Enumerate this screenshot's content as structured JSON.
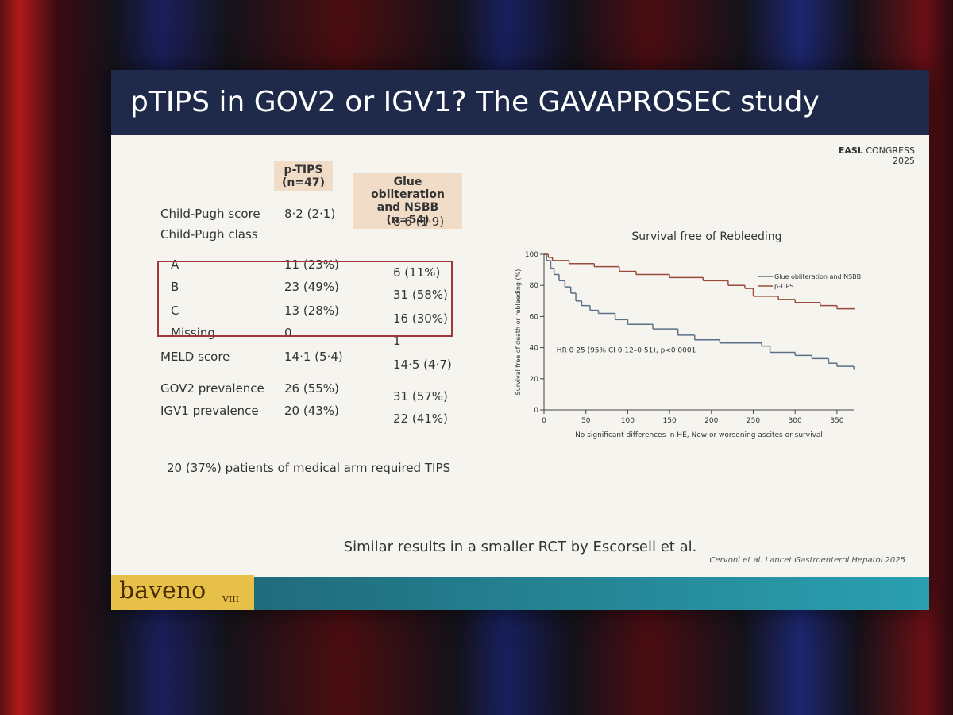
{
  "slide": {
    "title": "pTIPS in GOV2 or IGV1? The GAVAPROSEC study",
    "logo": {
      "name": "EASL",
      "event": "CONGRESS",
      "year": "2025"
    },
    "table": {
      "headers": [
        "p-TIPS (n=47)",
        "Glue obliteration and NSBB (n=54)"
      ],
      "rows": [
        [
          "Child-Pugh score",
          "8·2 (2·1)",
          "8·6 (1·9)"
        ],
        [
          "Child-Pugh class"
        ],
        [
          "A",
          "11 (23%)",
          "6 (11%)"
        ],
        [
          "B",
          "23 (49%)",
          "31 (58%)"
        ],
        [
          "C",
          "13 (28%)",
          "16 (30%)"
        ],
        [
          "Missing",
          "0",
          "1"
        ],
        [
          "MELD score",
          "14·1 (5·4)",
          "14·5 (4·7)"
        ],
        [
          "GOV2 prevalence",
          "26 (55%)",
          "31 (57%)"
        ],
        [
          "IGV1 prevalence",
          "20 (43%)",
          "22 (41%)"
        ]
      ]
    },
    "note": "20 (37%) patients of medical arm required TIPS",
    "footer": "Similar results in a smaller RCT by Escorsell et al.",
    "citation": "Cervoni et al. Lancet Gastroenterol Hepatol 2025",
    "brand": {
      "name": "baveno",
      "number": "VIII"
    }
  },
  "chart_data": {
    "type": "step",
    "title": "Survival free of Rebleeding",
    "x_label": "No significant differences in HE, New or worsening ascites or survival",
    "y_label": "Survival free of death or rebleeding (%)",
    "annotation": "HR 0·25 (95% CI 0·12–0·51), p<0·0001",
    "xlim": [
      0,
      370
    ],
    "xticks": [
      0,
      50,
      100,
      150,
      200,
      250,
      300,
      350
    ],
    "ylim": [
      0,
      100
    ],
    "yticks": [
      0,
      20,
      40,
      60,
      80,
      100
    ],
    "legend": "upper right",
    "series": [
      {
        "name": "Glue obliteration and NSBB",
        "color": "#5b7088",
        "x": [
          0,
          3,
          8,
          12,
          18,
          25,
          32,
          38,
          45,
          55,
          65,
          85,
          100,
          130,
          160,
          180,
          210,
          260,
          270,
          300,
          320,
          340,
          350,
          370
        ],
        "values": [
          100,
          96,
          91,
          87,
          83,
          79,
          75,
          70,
          67,
          64,
          62,
          58,
          55,
          52,
          48,
          45,
          43,
          41,
          37,
          35,
          33,
          30,
          28,
          26
        ]
      },
      {
        "name": "p-TIPS",
        "color": "#9a4a3c",
        "x": [
          0,
          5,
          10,
          30,
          60,
          90,
          110,
          150,
          190,
          220,
          240,
          250,
          280,
          300,
          330,
          350,
          370
        ],
        "values": [
          100,
          98,
          96,
          94,
          92,
          89,
          87,
          85,
          83,
          80,
          78,
          73,
          71,
          69,
          67,
          65,
          65
        ]
      }
    ]
  }
}
